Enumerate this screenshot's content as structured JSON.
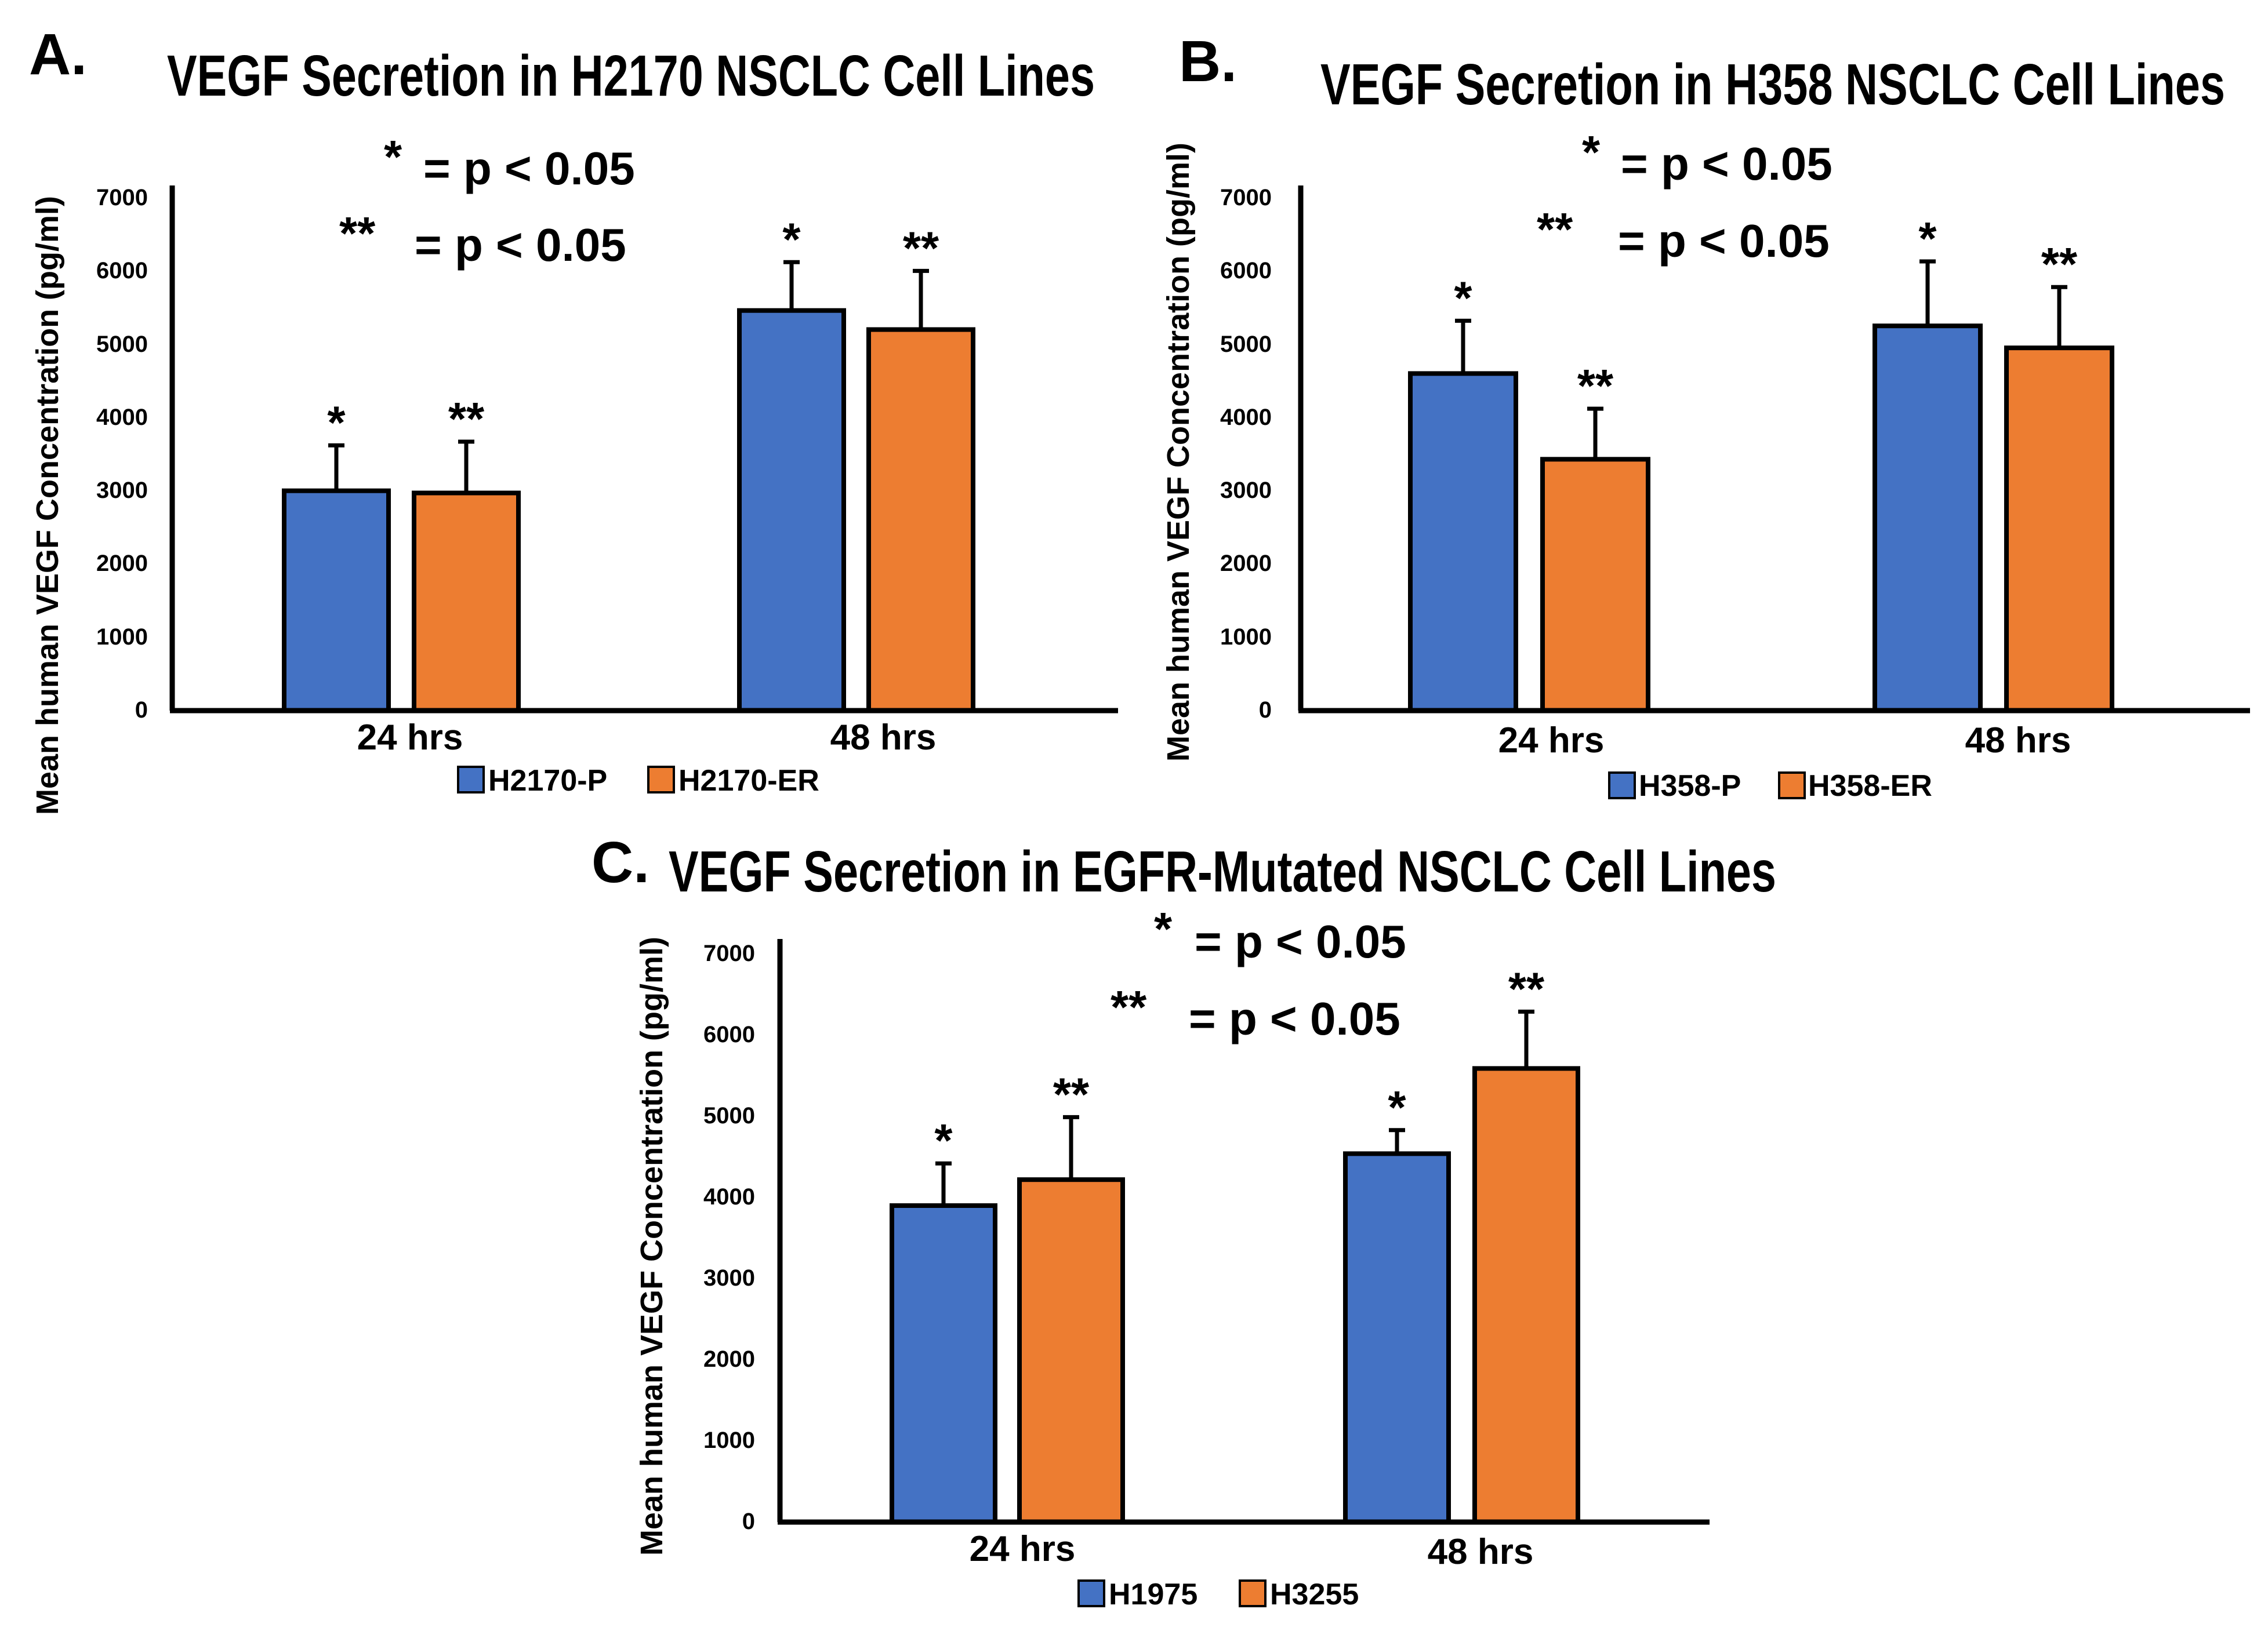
{
  "colors": {
    "blue": "#4472C4",
    "orange": "#ED7D31",
    "axis": "#000000"
  },
  "chart_data": [
    {
      "panel": "A.",
      "type": "bar",
      "title": "VEGF Secretion in H2170 NSCLC Cell Lines",
      "ylabel": "Mean human VEGF Concentration (pg/ml)",
      "xlabel": "",
      "ylim": [
        0,
        7000
      ],
      "yticks": [
        "0",
        "1000",
        "2000",
        "3000",
        "4000",
        "5000",
        "6000",
        "7000"
      ],
      "categories": [
        "24 hrs",
        "48 hrs"
      ],
      "significance": [
        {
          "symbol": "*",
          "text": "= p < 0.05"
        },
        {
          "symbol": "**",
          "text": "= p < 0.05"
        }
      ],
      "series": [
        {
          "name": "H2170-P",
          "values": [
            3000,
            5460
          ],
          "errors": [
            620,
            660
          ],
          "labels": [
            "*",
            "*"
          ]
        },
        {
          "name": "H2170-ER",
          "values": [
            2970,
            5200
          ],
          "errors": [
            700,
            800
          ],
          "labels": [
            "**",
            "**"
          ]
        }
      ]
    },
    {
      "panel": "B.",
      "type": "bar",
      "title": "VEGF Secretion in H358 NSCLC Cell Lines",
      "ylabel": "Mean human VEGF Concentration (pg/ml)",
      "xlabel": "",
      "ylim": [
        0,
        7000
      ],
      "yticks": [
        "0",
        "1000",
        "2000",
        "3000",
        "4000",
        "5000",
        "6000",
        "7000"
      ],
      "categories": [
        "24 hrs",
        "48 hrs"
      ],
      "significance": [
        {
          "symbol": "*",
          "text": "= p < 0.05"
        },
        {
          "symbol": "**",
          "text": "= p < 0.05"
        }
      ],
      "series": [
        {
          "name": "H358-P",
          "values": [
            4600,
            5250
          ],
          "errors": [
            720,
            880
          ],
          "labels": [
            "*",
            "*"
          ]
        },
        {
          "name": "H358-ER",
          "values": [
            3430,
            4950
          ],
          "errors": [
            690,
            830
          ],
          "labels": [
            "**",
            "**"
          ]
        }
      ]
    },
    {
      "panel": "C.",
      "type": "bar",
      "title": "VEGF Secretion in EGFR-Mutated NSCLC Cell Lines",
      "ylabel": "Mean human VEGF Concentration (pg/ml)",
      "xlabel": "",
      "ylim": [
        0,
        7000
      ],
      "yticks": [
        "0",
        "1000",
        "2000",
        "3000",
        "4000",
        "5000",
        "6000",
        "7000"
      ],
      "categories": [
        "24 hrs",
        "48 hrs"
      ],
      "significance": [
        {
          "symbol": "*",
          "text": "= p < 0.05"
        },
        {
          "symbol": "**",
          "text": "= p < 0.05"
        }
      ],
      "series": [
        {
          "name": "H1975",
          "values": [
            3900,
            4540
          ],
          "errors": [
            520,
            290
          ],
          "labels": [
            "*",
            "*"
          ]
        },
        {
          "name": "H3255",
          "values": [
            4220,
            5590
          ],
          "errors": [
            770,
            700
          ],
          "labels": [
            "**",
            "**"
          ]
        }
      ]
    }
  ]
}
